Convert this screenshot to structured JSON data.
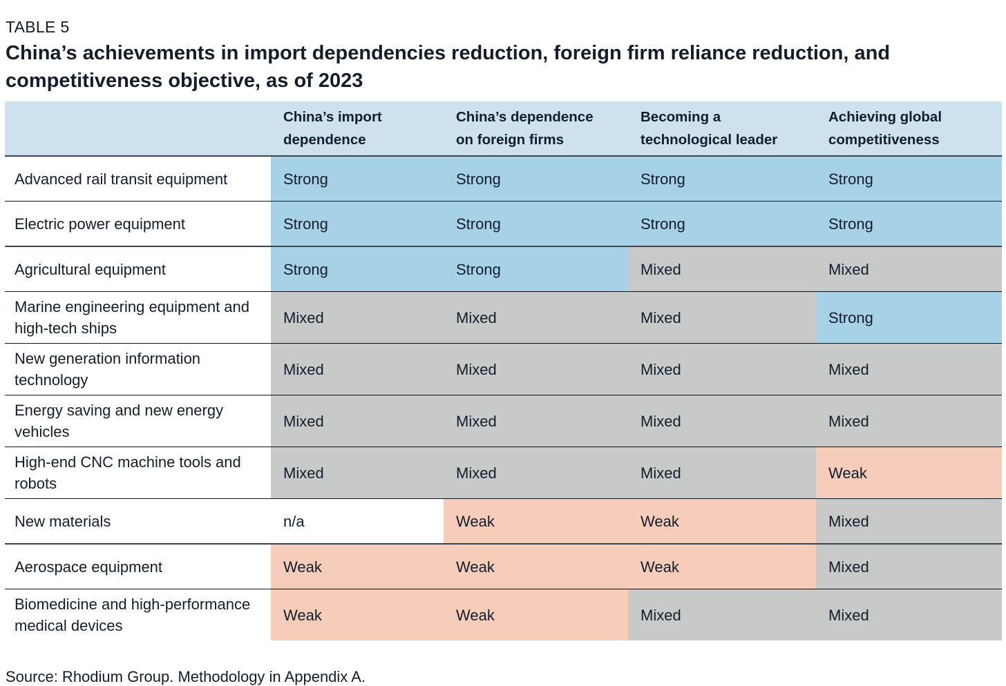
{
  "page": {
    "eyebrow": "TABLE 5",
    "title": "China’s achievements in import dependencies reduction, foreign firm reliance reduction, and competitiveness objective, as of 2023",
    "source": "Source: Rhodium Group. Methodology in Appendix A."
  },
  "colors": {
    "text": "#131d2b",
    "header_bg": "#cde2ee",
    "thin_line": "#0c1016",
    "thick_line": "#3c4150",
    "ratings": {
      "strong": "#a7d1e7",
      "mixed": "#c8c9c9",
      "weak": "#f6cdba",
      "n/a": "#ffffff"
    }
  },
  "chart_data": {
    "type": "table",
    "title": "China’s achievements in import dependencies reduction, foreign firm reliance reduction, and competitiveness objective, as of 2023",
    "columns": [
      "China’s import dependence",
      "China’s dependence on foreign firms",
      "Becoming a technological leader",
      "Achieving global competitiveness"
    ],
    "rows": [
      {
        "label": "Advanced rail transit equipment",
        "values": [
          "Strong",
          "Strong",
          "Strong",
          "Strong"
        ]
      },
      {
        "label": "Electric power equipment",
        "values": [
          "Strong",
          "Strong",
          "Strong",
          "Strong"
        ]
      },
      {
        "label": "Agricultural equipment",
        "values": [
          "Strong",
          "Strong",
          "Mixed",
          "Mixed"
        ],
        "thick_top": true
      },
      {
        "label": "Marine engineering equipment and high-tech ships",
        "values": [
          "Mixed",
          "Mixed",
          "Mixed",
          "Strong"
        ]
      },
      {
        "label": "New generation information technology",
        "values": [
          "Mixed",
          "Mixed",
          "Mixed",
          "Mixed"
        ]
      },
      {
        "label": "Energy saving and new energy vehicles",
        "values": [
          "Mixed",
          "Mixed",
          "Mixed",
          "Mixed"
        ]
      },
      {
        "label": "High-end CNC machine tools and robots",
        "values": [
          "Mixed",
          "Mixed",
          "Mixed",
          "Weak"
        ]
      },
      {
        "label": "New materials",
        "values": [
          "n/a",
          "Weak",
          "Weak",
          "Mixed"
        ]
      },
      {
        "label": "Aerospace equipment",
        "values": [
          "Weak",
          "Weak",
          "Weak",
          "Mixed"
        ],
        "thick_top": true
      },
      {
        "label": "Biomedicine and high-performance medical devices",
        "values": [
          "Weak",
          "Weak",
          "Mixed",
          "Mixed"
        ]
      }
    ],
    "legend": {
      "Strong": "#a7d1e7",
      "Mixed": "#c8c9c9",
      "Weak": "#f6cdba",
      "n/a": "#ffffff"
    }
  }
}
